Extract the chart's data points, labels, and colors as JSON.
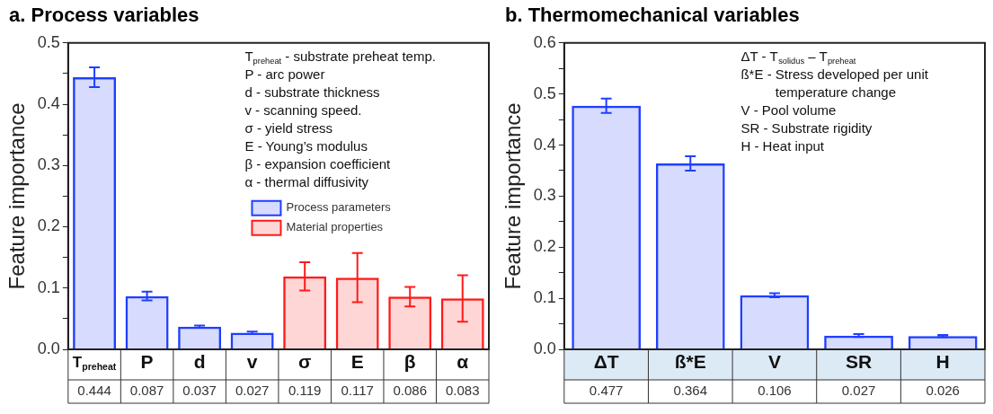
{
  "chart_data": [
    {
      "type": "bar",
      "title": "a. Process variables",
      "ylabel": "Feature importance",
      "categories": [
        "T$_{preheat}$",
        "P",
        "d",
        "v",
        "σ",
        "E",
        "β",
        "α"
      ],
      "series": [
        {
          "name": "Process parameters",
          "color": "#1f3fff",
          "values": [
            0.444,
            0.087,
            0.037,
            0.027,
            null,
            null,
            null,
            null
          ],
          "errors": [
            0.016,
            0.007,
            0.002,
            0.002,
            null,
            null,
            null,
            null
          ]
        },
        {
          "name": "Material properties",
          "color": "#ff1a1a",
          "values": [
            null,
            null,
            null,
            null,
            0.119,
            0.117,
            0.086,
            0.083
          ],
          "errors": [
            null,
            null,
            null,
            null,
            0.023,
            0.04,
            0.016,
            0.038
          ]
        }
      ],
      "ylim": [
        0,
        0.5
      ],
      "yticks": [
        {
          "value": 0,
          "label": "0.0"
        },
        {
          "value": 0.05,
          "label": null
        },
        {
          "value": 0.1,
          "label": "0.1"
        },
        {
          "value": 0.15,
          "label": null
        },
        {
          "value": 0.2,
          "label": "0.2"
        },
        {
          "value": 0.25,
          "label": null
        },
        {
          "value": 0.3,
          "label": "0.3"
        },
        {
          "value": 0.35,
          "label": null
        },
        {
          "value": 0.4,
          "label": "0.4"
        },
        {
          "value": 0.45,
          "label": null
        },
        {
          "value": 0.5,
          "label": "0.5"
        }
      ],
      "annotations": [
        "T$_{preheat}$ - substrate preheat temp.",
        "P - arc power",
        "d - substrate thickness",
        "v - scanning speed.",
        "σ - yield stress",
        "E - Young’s modulus",
        "β - expansion coefficient",
        "α - thermal diffusivity"
      ],
      "legend": "right",
      "data_labels": true
    },
    {
      "type": "bar",
      "title": "b. Thermomechanical variables",
      "ylabel": "Feature importance",
      "categories": [
        "ΔT",
        "ß*E",
        "V",
        "SR",
        "H"
      ],
      "series": [
        {
          "color": "#1f3fff",
          "values": [
            0.477,
            0.364,
            0.106,
            0.027,
            0.026
          ],
          "errors": [
            0.014,
            0.014,
            0.004,
            0.003,
            0.002
          ]
        }
      ],
      "ylim": [
        0,
        0.6
      ],
      "yticks": [
        {
          "value": 0,
          "label": "0.0"
        },
        {
          "value": 0.05,
          "label": null
        },
        {
          "value": 0.1,
          "label": "0.1"
        },
        {
          "value": 0.15,
          "label": null
        },
        {
          "value": 0.2,
          "label": "0.2"
        },
        {
          "value": 0.25,
          "label": null
        },
        {
          "value": 0.3,
          "label": "0.3"
        },
        {
          "value": 0.35,
          "label": null
        },
        {
          "value": 0.4,
          "label": "0.4"
        },
        {
          "value": 0.45,
          "label": null
        },
        {
          "value": 0.5,
          "label": "0.5"
        },
        {
          "value": 0.55,
          "label": null
        },
        {
          "value": 0.6,
          "label": "0.6"
        }
      ],
      "annotations": [
        "ΔT - T$_{solidus}$ – T$_{preheat}$",
        "ß*E - Stress developed per unit temperature change",
        "V - Pool volume",
        "SR - Substrate rigidity",
        "H - Heat input"
      ],
      "data_labels": true
    }
  ]
}
